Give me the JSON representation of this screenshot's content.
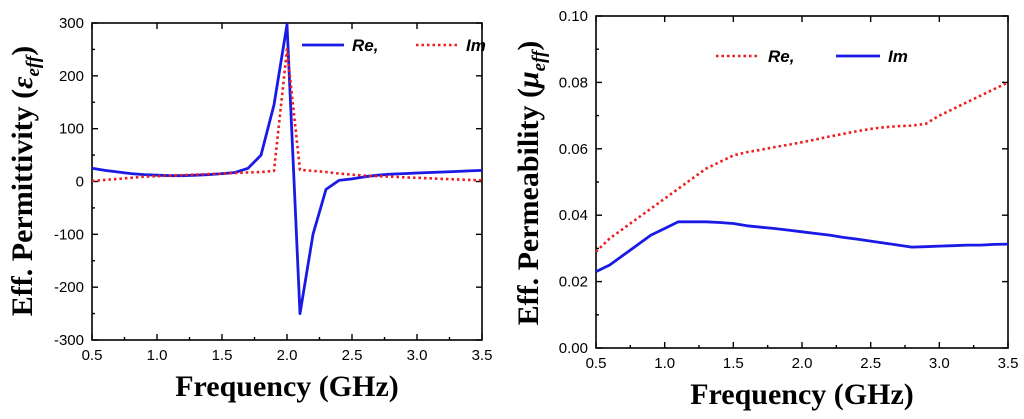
{
  "chart_data": [
    {
      "type": "line",
      "title": "",
      "xlabel": "Frequency (GHz)",
      "ylabel": "Eff. Permittivity (",
      "ylabel_symbol": "ε",
      "ylabel_subscript": "eff",
      "ylabel_close": ")",
      "xlim": [
        0.5,
        3.5
      ],
      "ylim": [
        -300,
        300
      ],
      "xticks": [
        0.5,
        1.0,
        1.5,
        2.0,
        2.5,
        3.0,
        3.5
      ],
      "xtick_labels": [
        "0.5",
        "1.0",
        "1.5",
        "2.0",
        "2.5",
        "3.0",
        "3.5"
      ],
      "yticks": [
        -300,
        -200,
        -100,
        0,
        100,
        200,
        300
      ],
      "ytick_labels": [
        "-300",
        "-200",
        "-100",
        "0",
        "100",
        "200",
        "300"
      ],
      "grid": false,
      "legend_position": "top-right",
      "series": [
        {
          "name": "Re,",
          "style": "solid",
          "color": "#1a1ae6",
          "x": [
            0.5,
            0.6,
            0.7,
            0.8,
            0.9,
            1.0,
            1.1,
            1.2,
            1.3,
            1.4,
            1.5,
            1.6,
            1.7,
            1.8,
            1.9,
            2.0,
            2.1,
            2.2,
            2.3,
            2.4,
            2.5,
            2.6,
            2.7,
            2.8,
            2.9,
            3.0,
            3.1,
            3.2,
            3.3,
            3.4,
            3.5
          ],
          "y": [
            25,
            21,
            18,
            15,
            13,
            12,
            11,
            11,
            12,
            13,
            15,
            17,
            25,
            50,
            145,
            297,
            -250,
            -100,
            -15,
            2,
            5,
            9,
            12,
            14,
            15,
            16,
            17,
            18,
            19,
            20,
            21
          ]
        },
        {
          "name": "Im",
          "style": "dotted",
          "color": "#ee1c1c",
          "x": [
            0.5,
            0.6,
            0.7,
            0.8,
            0.9,
            1.0,
            1.1,
            1.2,
            1.3,
            1.4,
            1.5,
            1.6,
            1.7,
            1.8,
            1.9,
            2.0,
            2.1,
            2.2,
            2.3,
            2.4,
            2.5,
            2.6,
            2.7,
            2.8,
            2.9,
            3.0,
            3.1,
            3.2,
            3.3,
            3.4,
            3.5
          ],
          "y": [
            1,
            3,
            5,
            7,
            9,
            10,
            11,
            12,
            13,
            14,
            15,
            16,
            17,
            18,
            20,
            250,
            22,
            20,
            18,
            15,
            13,
            11,
            10,
            9,
            8,
            7,
            6,
            5,
            4,
            3,
            2
          ]
        }
      ]
    },
    {
      "type": "line",
      "title": "",
      "xlabel": "Frequency (GHz)",
      "ylabel": "Eff. Permeability (",
      "ylabel_symbol": "μ",
      "ylabel_subscript": "eff",
      "ylabel_close": ")",
      "xlim": [
        0.5,
        3.5
      ],
      "ylim": [
        0.0,
        0.1
      ],
      "xticks": [
        0.5,
        1.0,
        1.5,
        2.0,
        2.5,
        3.0,
        3.5
      ],
      "xtick_labels": [
        "0.5",
        "1.0",
        "1.5",
        "2.0",
        "2.5",
        "3.0",
        "3.5"
      ],
      "yticks": [
        0.0,
        0.02,
        0.04,
        0.06,
        0.08,
        0.1
      ],
      "ytick_labels": [
        "0.00",
        "0.02",
        "0.04",
        "0.06",
        "0.08",
        "0.10"
      ],
      "grid": false,
      "legend_position": "top-center",
      "series": [
        {
          "name": "Re,",
          "style": "dotted",
          "color": "#ee1c1c",
          "x": [
            0.5,
            0.6,
            0.7,
            0.8,
            0.9,
            1.0,
            1.1,
            1.2,
            1.3,
            1.4,
            1.5,
            1.6,
            1.7,
            1.8,
            1.9,
            2.0,
            2.1,
            2.2,
            2.3,
            2.4,
            2.5,
            2.6,
            2.7,
            2.8,
            2.9,
            3.0,
            3.1,
            3.2,
            3.3,
            3.4,
            3.5
          ],
          "y": [
            0.029,
            0.033,
            0.036,
            0.039,
            0.042,
            0.045,
            0.048,
            0.051,
            0.054,
            0.056,
            0.058,
            0.059,
            0.0597,
            0.0605,
            0.0612,
            0.062,
            0.0628,
            0.0637,
            0.0645,
            0.0653,
            0.066,
            0.0665,
            0.0668,
            0.067,
            0.0675,
            0.07,
            0.072,
            0.074,
            0.076,
            0.078,
            0.08
          ]
        },
        {
          "name": "Im",
          "style": "solid",
          "color": "#1a1ae6",
          "x": [
            0.5,
            0.6,
            0.7,
            0.8,
            0.9,
            1.0,
            1.1,
            1.2,
            1.3,
            1.4,
            1.5,
            1.6,
            1.7,
            1.8,
            1.9,
            2.0,
            2.1,
            2.2,
            2.3,
            2.4,
            2.5,
            2.6,
            2.7,
            2.8,
            2.9,
            3.0,
            3.1,
            3.2,
            3.3,
            3.4,
            3.5
          ],
          "y": [
            0.023,
            0.025,
            0.028,
            0.031,
            0.034,
            0.036,
            0.038,
            0.038,
            0.038,
            0.0378,
            0.0375,
            0.0368,
            0.0364,
            0.036,
            0.0355,
            0.035,
            0.0345,
            0.034,
            0.0333,
            0.0328,
            0.0322,
            0.0316,
            0.031,
            0.0304,
            0.0305,
            0.0307,
            0.0308,
            0.031,
            0.031,
            0.0312,
            0.0313
          ]
        }
      ]
    }
  ]
}
